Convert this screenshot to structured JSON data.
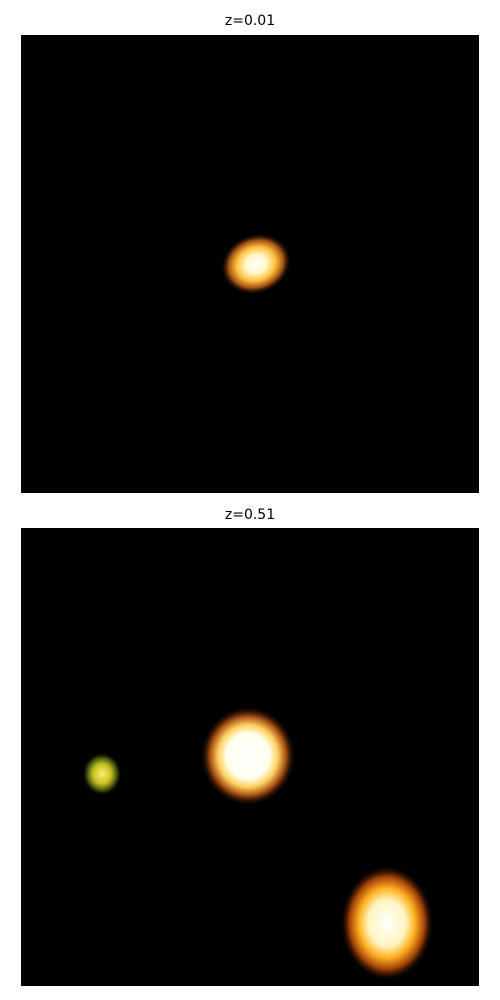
{
  "panels": [
    {
      "title": "z=0.01"
    },
    {
      "title": "z=0.51"
    }
  ],
  "colors": {
    "background": "#000000",
    "core": "#ffffff",
    "halo": "#ffb000",
    "faint_source": "#e8e040"
  }
}
